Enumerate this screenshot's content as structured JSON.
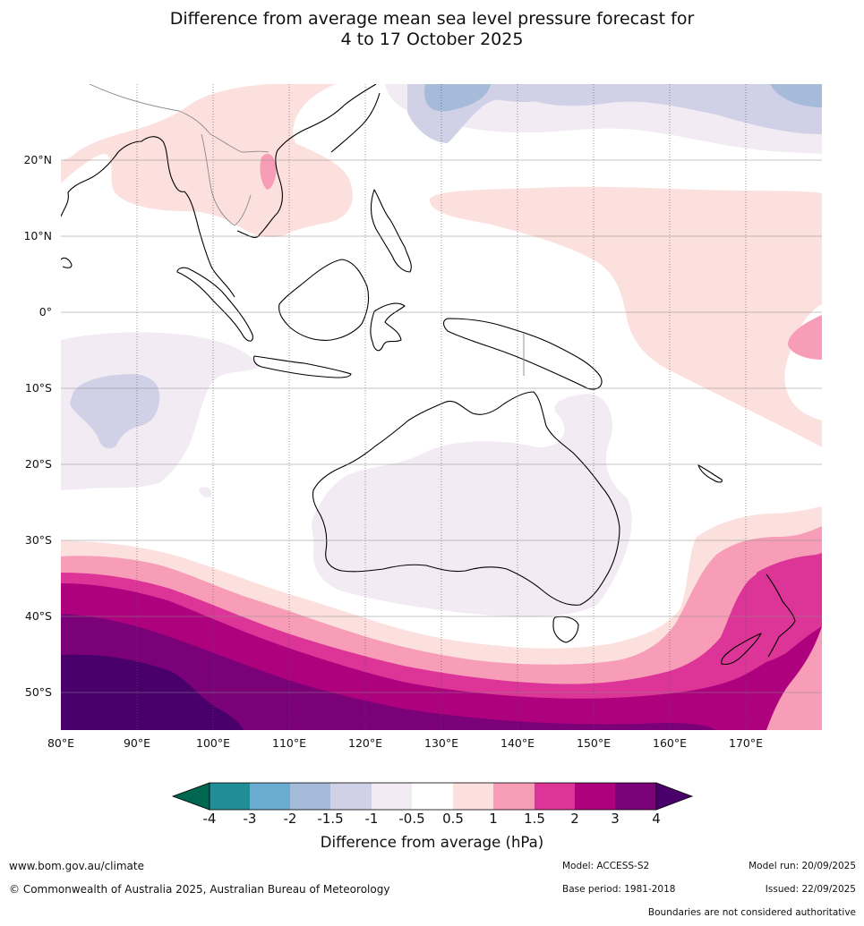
{
  "title": {
    "line1": "Difference from average mean sea level pressure forecast for",
    "line2": "4 to 17 October 2025"
  },
  "map": {
    "region": "Indo-Pacific and Australia",
    "lon_range": [
      80,
      180
    ],
    "lat_range": [
      -55,
      30
    ],
    "lat_labels": [
      "20°N",
      "10°N",
      "0°",
      "10°S",
      "20°S",
      "30°S",
      "40°S",
      "50°S"
    ],
    "lon_labels": [
      "80°E",
      "90°E",
      "100°E",
      "110°E",
      "120°E",
      "130°E",
      "140°E",
      "150°E",
      "160°E",
      "170°E"
    ]
  },
  "legend": {
    "title": "Difference from average (hPa)",
    "ticks": [
      "-4",
      "-3",
      "-2",
      "-1.5",
      "-1",
      "-0.5",
      "0.5",
      "1",
      "1.5",
      "2",
      "3",
      "4"
    ],
    "colors": [
      "#006650",
      "#208e96",
      "#6aabd2",
      "#a6bbd9",
      "#d0d1e6",
      "#f2ebf4",
      "#ffffff",
      "#fce0de",
      "#f89db8",
      "#dd3497",
      "#ae017e",
      "#7a0177",
      "#49006a"
    ]
  },
  "footer": {
    "website": "www.bom.gov.au/climate",
    "copyright": "© Commonwealth of Australia 2025, Australian Bureau of Meteorology",
    "model": "Model: ACCESS-S2",
    "base_period": "Base period: 1981-2018",
    "model_run": "Model run: 20/09/2025",
    "issued": "Issued: 22/09/2025",
    "disclaimer": "Boundaries are not considered authoritative"
  }
}
